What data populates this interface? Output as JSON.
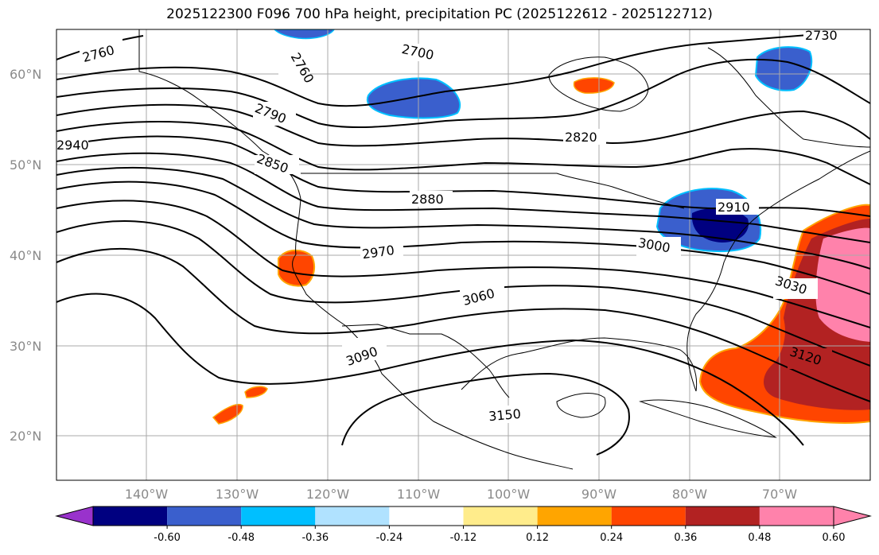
{
  "title": "2025122300 F096 700 hPa height, precipitation PC (2025122612 - 2025122712)",
  "lat_labels": [
    "60°N",
    "50°N",
    "40°N",
    "30°N",
    "20°N"
  ],
  "lon_labels": [
    "140°W",
    "130°W",
    "120°W",
    "110°W",
    "100°W",
    "90°W",
    "80°W",
    "70°W"
  ],
  "contour_labels": [
    "2760",
    "2700",
    "2760",
    "2730",
    "2790",
    "2940",
    "2820",
    "2850",
    "2880",
    "2910",
    "2970",
    "3000",
    "3030",
    "3060",
    "3090",
    "3120",
    "3150"
  ],
  "colorbar": {
    "ticks": [
      "-0.60",
      "-0.48",
      "-0.36",
      "-0.24",
      "-0.12",
      "0.12",
      "0.24",
      "0.36",
      "0.48",
      "0.60"
    ],
    "colors": [
      "#9932cc",
      "#000080",
      "#3a5fcd",
      "#00bfff",
      "#b0e2ff",
      "#ffffff",
      "#ffec8b",
      "#ffa500",
      "#ff4500",
      "#b22222",
      "#ff82ab",
      "#ff82ab"
    ]
  }
}
